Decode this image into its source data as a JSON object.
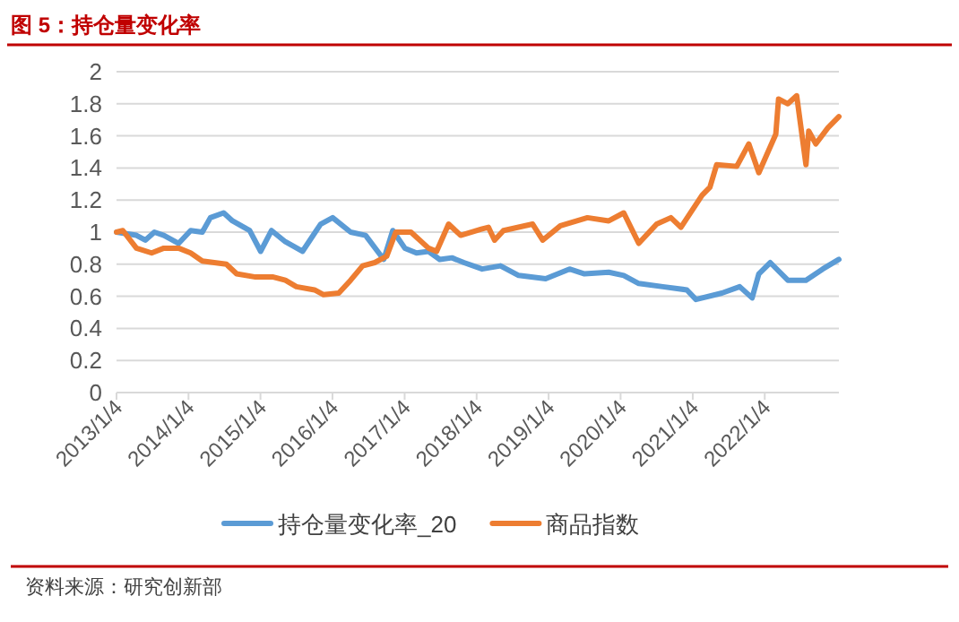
{
  "chart_data": {
    "type": "line",
    "title": "图 5：持仓量变化率",
    "annotations": [
      "资料来源：研究创新部"
    ],
    "xlim": [
      "2013-01-04",
      "2023-01-15"
    ],
    "xticks": [
      {
        "value": "2013-01-04",
        "label": "2013/1/4"
      },
      {
        "value": "2014-01-04",
        "label": "2014/1/4"
      },
      {
        "value": "2015-01-04",
        "label": "2015/1/4"
      },
      {
        "value": "2016-01-04",
        "label": "2016/1/4"
      },
      {
        "value": "2017-01-04",
        "label": "2017/1/4"
      },
      {
        "value": "2018-01-04",
        "label": "2018/1/4"
      },
      {
        "value": "2019-01-04",
        "label": "2019/1/4"
      },
      {
        "value": "2020-01-04",
        "label": "2020/1/4"
      },
      {
        "value": "2021-01-04",
        "label": "2021/1/4"
      },
      {
        "value": "2022-01-04",
        "label": "2022/1/4"
      }
    ],
    "ylim": [
      0,
      2
    ],
    "yticks": [
      0,
      0.2,
      0.4,
      0.6,
      0.8,
      1,
      1.2,
      1.4,
      1.6,
      1.8,
      2
    ],
    "grid": "y",
    "legend": "bottom",
    "marker": "none",
    "line_style": "solid",
    "series": [
      {
        "name": "持仓量变化率_20",
        "color": "#5b9bd5",
        "x": [
          "2013-01-04",
          "2013-04-15",
          "2013-05-30",
          "2013-07-15",
          "2013-09-01",
          "2013-11-15",
          "2014-01-15",
          "2014-03-15",
          "2014-04-25",
          "2014-07-01",
          "2014-08-15",
          "2014-11-10",
          "2015-01-05",
          "2015-03-01",
          "2015-05-10",
          "2015-08-05",
          "2015-11-05",
          "2016-01-05",
          "2016-04-05",
          "2016-06-20",
          "2016-09-20",
          "2016-11-05",
          "2017-01-05",
          "2017-03-05",
          "2017-05-05",
          "2017-07-01",
          "2017-09-01",
          "2017-11-01",
          "2018-02-01",
          "2018-05-05",
          "2018-08-05",
          "2018-12-20",
          "2019-04-20",
          "2019-07-05",
          "2019-11-05",
          "2020-01-20",
          "2020-04-05",
          "2020-08-05",
          "2020-12-05",
          "2021-01-20",
          "2021-06-01",
          "2021-08-30",
          "2021-11-01",
          "2021-12-05",
          "2022-02-01",
          "2022-05-01",
          "2022-08-01",
          "2022-10-25",
          "2023-01-15"
        ],
        "values": [
          1.0,
          0.98,
          0.95,
          1.0,
          0.98,
          0.93,
          1.01,
          1.0,
          1.09,
          1.12,
          1.07,
          1.01,
          0.88,
          1.01,
          0.94,
          0.88,
          1.05,
          1.09,
          1.0,
          0.98,
          0.83,
          1.01,
          0.9,
          0.87,
          0.88,
          0.83,
          0.84,
          0.81,
          0.77,
          0.79,
          0.73,
          0.71,
          0.77,
          0.74,
          0.75,
          0.73,
          0.68,
          0.66,
          0.64,
          0.58,
          0.62,
          0.66,
          0.59,
          0.74,
          0.81,
          0.7,
          0.7,
          0.77,
          0.83
        ]
      },
      {
        "name": "商品指数",
        "color": "#ed7d31",
        "x": [
          "2013-01-04",
          "2013-02-05",
          "2013-04-15",
          "2013-07-01",
          "2013-09-01",
          "2013-11-15",
          "2014-01-15",
          "2014-03-15",
          "2014-07-15",
          "2014-09-05",
          "2014-12-10",
          "2015-03-10",
          "2015-05-10",
          "2015-07-05",
          "2015-10-05",
          "2015-11-20",
          "2016-02-05",
          "2016-04-05",
          "2016-06-05",
          "2016-08-05",
          "2016-10-05",
          "2016-11-20",
          "2017-02-05",
          "2017-05-05",
          "2017-06-15",
          "2017-08-15",
          "2017-10-15",
          "2018-02-01",
          "2018-03-05",
          "2018-04-05",
          "2018-05-20",
          "2018-10-15",
          "2018-12-05",
          "2019-03-05",
          "2019-07-20",
          "2019-11-05",
          "2020-01-20",
          "2020-04-05",
          "2020-07-05",
          "2020-09-15",
          "2020-11-05",
          "2021-02-20",
          "2021-04-01",
          "2021-05-05",
          "2021-08-15",
          "2021-10-15",
          "2021-12-05",
          "2022-03-01",
          "2022-03-15",
          "2022-05-01",
          "2022-06-15",
          "2022-08-01",
          "2022-08-15",
          "2022-09-20",
          "2022-11-20",
          "2023-01-15"
        ],
        "values": [
          1.0,
          1.01,
          0.9,
          0.87,
          0.9,
          0.9,
          0.87,
          0.82,
          0.8,
          0.74,
          0.72,
          0.72,
          0.7,
          0.66,
          0.64,
          0.61,
          0.62,
          0.7,
          0.79,
          0.81,
          0.85,
          1.0,
          1.0,
          0.9,
          0.88,
          1.05,
          0.98,
          1.02,
          1.03,
          0.95,
          1.01,
          1.05,
          0.95,
          1.04,
          1.09,
          1.07,
          1.12,
          0.93,
          1.05,
          1.09,
          1.03,
          1.23,
          1.28,
          1.42,
          1.41,
          1.55,
          1.37,
          1.61,
          1.83,
          1.8,
          1.85,
          1.42,
          1.63,
          1.55,
          1.65,
          1.72
        ]
      }
    ]
  }
}
